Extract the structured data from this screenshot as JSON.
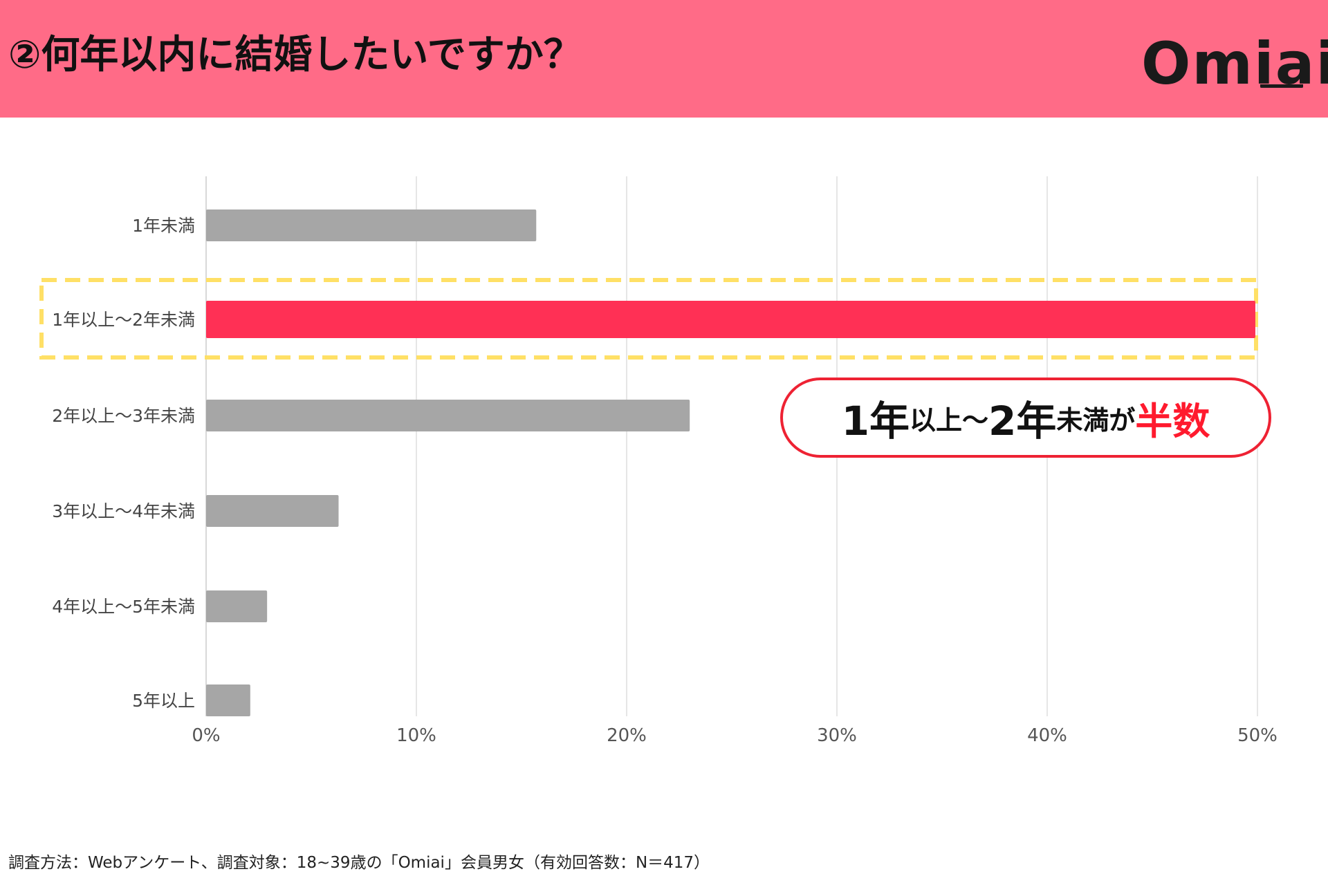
{
  "header": {
    "title": "②何年以内に結婚したいですか？",
    "logo_text": "Omiai"
  },
  "callout": {
    "part1": "1年",
    "part2": "以上～",
    "part3": "2年",
    "part4": "未満が",
    "part5": "半数"
  },
  "footnote": "調査方法：Webアンケート、調査対象：18~39歳の「Omiai」会員男女（有効回答数：N＝417）",
  "colors": {
    "header_bg": "#ff6b87",
    "bar_default": "#a6a6a6",
    "bar_highlight": "#ff3055",
    "highlight_box": "#ffe066",
    "callout_accent": "#ee2233"
  },
  "chart_data": {
    "type": "bar",
    "orientation": "horizontal",
    "categories": [
      "1年未満",
      "1年以上～2年未満",
      "2年以上～3年未満",
      "3年以上～4年未満",
      "4年以上～5年未満",
      "5年以上"
    ],
    "values": [
      15.7,
      49.9,
      23.0,
      6.3,
      2.9,
      2.1
    ],
    "highlight_category": "1年以上～2年未満",
    "xlim": [
      0,
      50
    ],
    "xticks": [
      "0%",
      "10%",
      "20%",
      "30%",
      "40%",
      "50%"
    ],
    "grid": true,
    "unit": "%"
  }
}
